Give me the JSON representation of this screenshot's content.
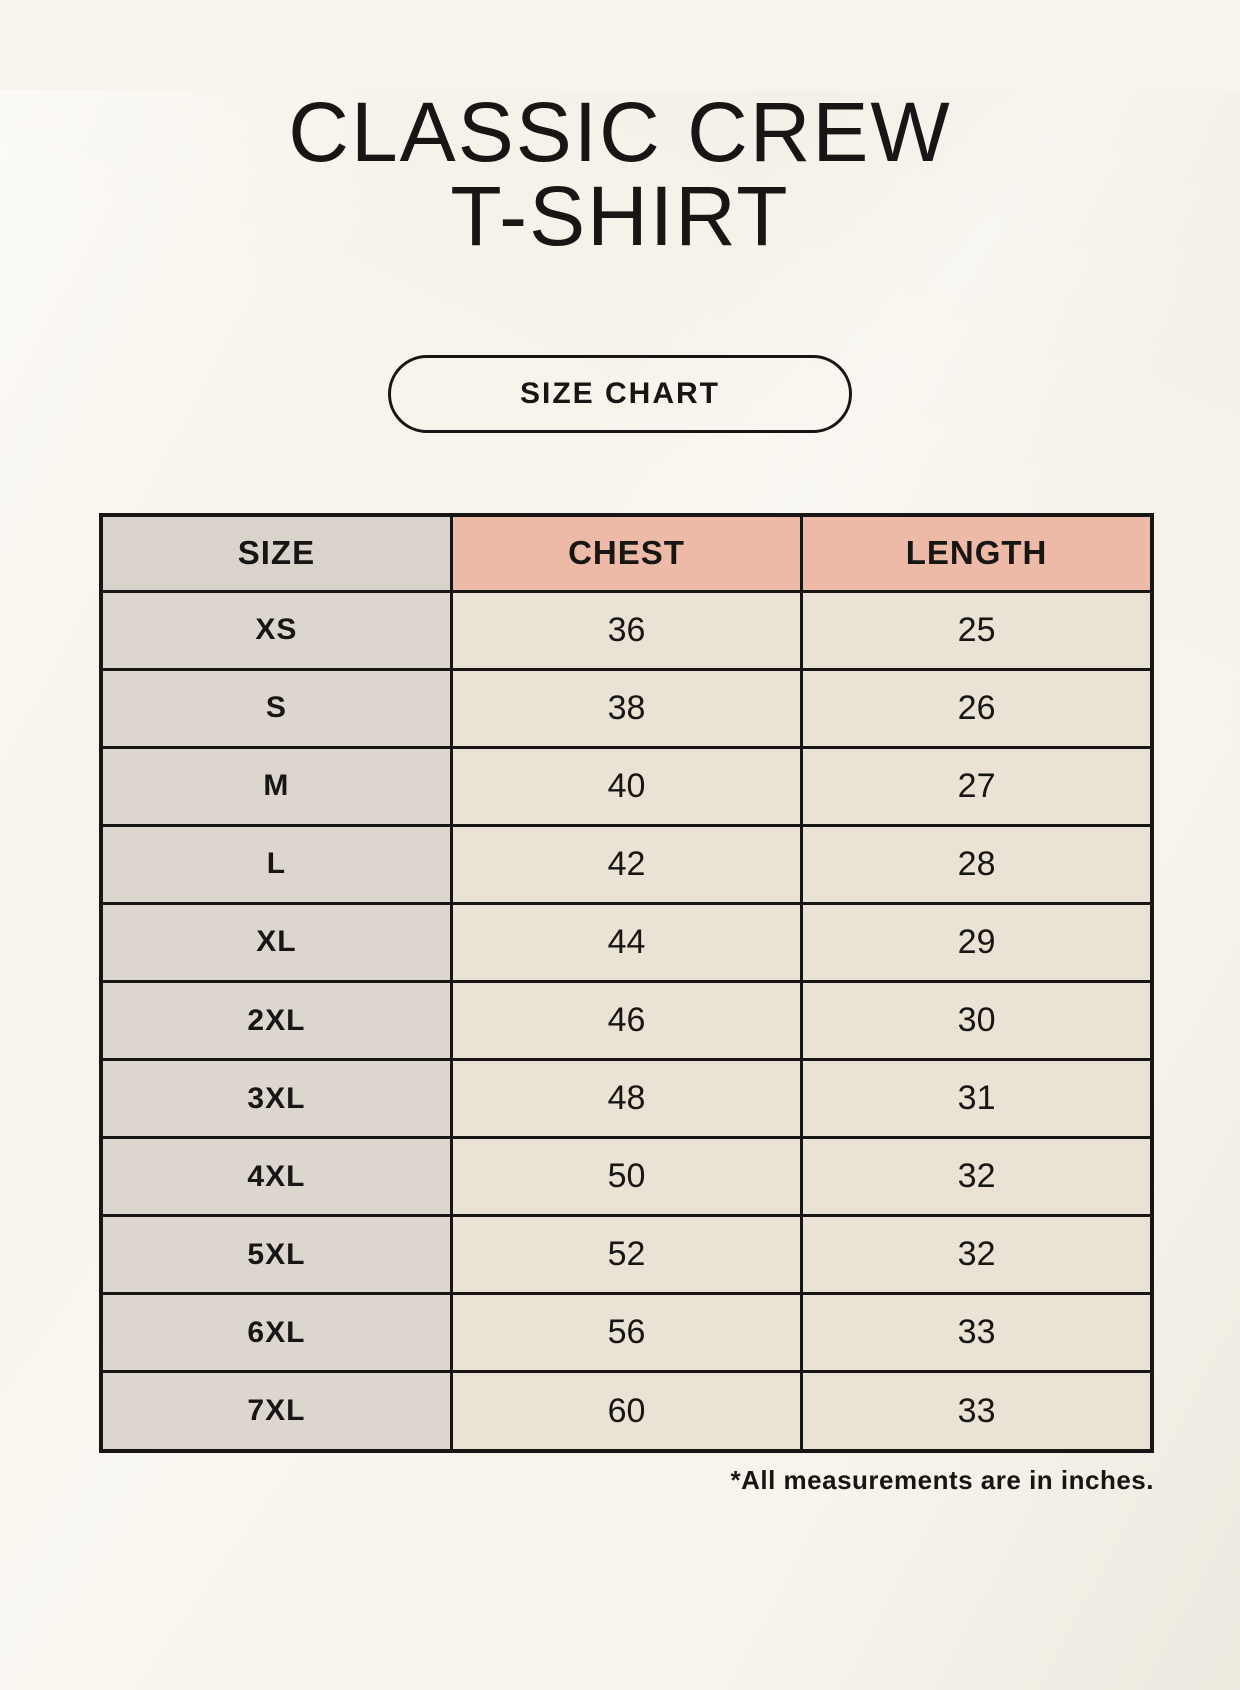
{
  "header": {
    "title_line1": "CLASSIC CREW",
    "title_line2": "T-SHIRT",
    "badge_label": "SIZE CHART"
  },
  "chart_data": {
    "type": "table",
    "title": "Classic Crew T-Shirt Size Chart",
    "columns": [
      "SIZE",
      "CHEST",
      "LENGTH"
    ],
    "rows": [
      [
        "XS",
        "36",
        "25"
      ],
      [
        "S",
        "38",
        "26"
      ],
      [
        "M",
        "40",
        "27"
      ],
      [
        "L",
        "42",
        "28"
      ],
      [
        "XL",
        "44",
        "29"
      ],
      [
        "2XL",
        "46",
        "30"
      ],
      [
        "3XL",
        "48",
        "31"
      ],
      [
        "4XL",
        "50",
        "32"
      ],
      [
        "5XL",
        "52",
        "32"
      ],
      [
        "6XL",
        "56",
        "33"
      ],
      [
        "7XL",
        "60",
        "33"
      ]
    ],
    "units": "inches"
  },
  "footnote": "*All measurements are in inches.",
  "colors": {
    "background": "#f8f4ec",
    "ink": "#171614",
    "border": "#171614",
    "accent": "#edbaa8",
    "size_header_bg": "#dad3cc",
    "size_col_bg": "#ddd6cf",
    "cell_bg": "#eae3d5"
  }
}
